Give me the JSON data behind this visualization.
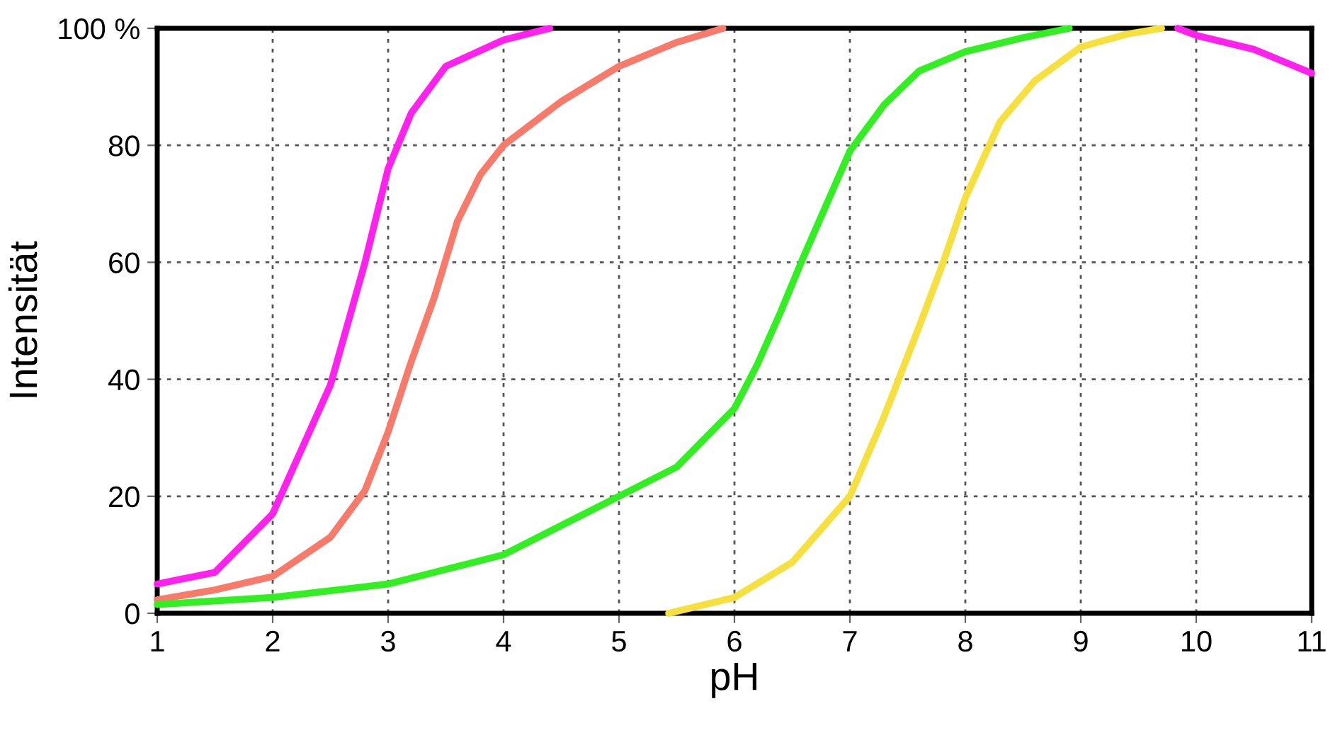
{
  "chart_data": {
    "type": "line",
    "xlabel": "pH",
    "ylabel": "Intensität",
    "xlim": [
      1,
      11
    ],
    "xticks": [
      1,
      2,
      3,
      4,
      5,
      6,
      7,
      8,
      9,
      10,
      11
    ],
    "ylim": [
      0,
      100
    ],
    "yticks": [
      0,
      20,
      40,
      60,
      80,
      {
        "value": 100,
        "label": "100 %"
      }
    ],
    "grid": true,
    "line_style": "solid",
    "marker": "none",
    "series": [
      {
        "color": "#ff22ee",
        "x": [
          1,
          1.5,
          2,
          2.5,
          2.8,
          3,
          3.2,
          3.5,
          4,
          4.4,
          7,
          9.84,
          10,
          10.5,
          11
        ],
        "values": [
          5,
          7,
          17,
          39,
          60,
          76,
          85.5,
          93.5,
          98,
          100,
          null,
          100,
          98.8,
          96.4,
          92.3
        ]
      },
      {
        "color": "#f87a6a",
        "x": [
          1,
          1.5,
          2,
          2.5,
          2.8,
          3,
          3.2,
          3.4,
          3.6,
          3.8,
          4,
          4.5,
          5,
          5.5,
          5.9
        ],
        "values": [
          2.3,
          4,
          6.3,
          13,
          21,
          31,
          43,
          54,
          67,
          75,
          80,
          87.5,
          93.5,
          97.6,
          100
        ]
      },
      {
        "color": "#33ee22",
        "x": [
          1,
          2,
          3,
          4,
          5,
          5.5,
          6,
          6.2,
          6.4,
          6.6,
          6.8,
          7,
          7.3,
          7.6,
          8,
          8.5,
          8.9
        ],
        "values": [
          1.5,
          2.7,
          5,
          10,
          20,
          25,
          35,
          42.6,
          51.5,
          61,
          70,
          79,
          87,
          92.7,
          96,
          98.4,
          100
        ]
      },
      {
        "color": "#f5e040",
        "x": [
          5.43,
          6,
          6.5,
          7,
          7.3,
          7.6,
          7.8,
          8,
          8.3,
          8.6,
          9,
          9.4,
          9.7
        ],
        "values": [
          0,
          2.7,
          8.7,
          20,
          33.8,
          49,
          59.5,
          71,
          84,
          91,
          96.8,
          99,
          100
        ]
      }
    ]
  }
}
